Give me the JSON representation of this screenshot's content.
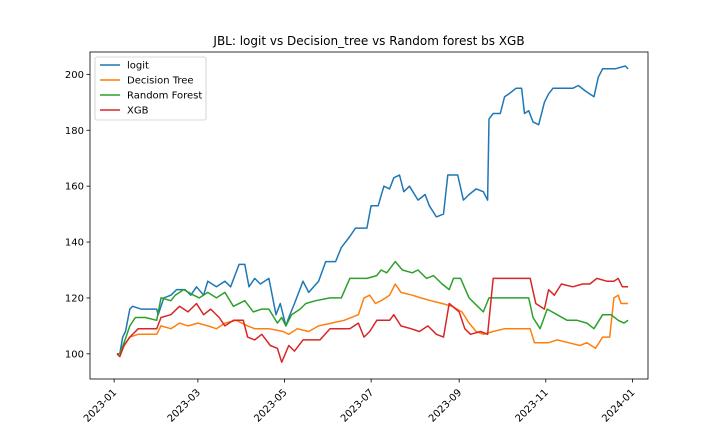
{
  "chart_data": {
    "type": "line",
    "title": "JBL: logit vs Decision_tree vs Random forest bs XGB",
    "xlabel": "",
    "ylabel": "",
    "xlim": [
      "2022-12-15",
      "2024-01-12"
    ],
    "ylim": [
      91,
      208
    ],
    "grid": false,
    "legend_position": "upper-left",
    "x_ticks": [
      "2023-01",
      "2023-03",
      "2023-05",
      "2023-07",
      "2023-09",
      "2023-11",
      "2024-01"
    ],
    "y_ticks": [
      100,
      120,
      140,
      160,
      180,
      200
    ],
    "series": [
      {
        "name": "logit",
        "color": "#1f77b4",
        "points": [
          [
            "2023-01-03",
            100
          ],
          [
            "2023-01-05",
            100
          ],
          [
            "2023-01-07",
            106
          ],
          [
            "2023-01-09",
            108
          ],
          [
            "2023-01-12",
            116
          ],
          [
            "2023-01-14",
            117
          ],
          [
            "2023-01-20",
            116
          ],
          [
            "2023-01-31",
            116
          ],
          [
            "2023-02-01",
            114
          ],
          [
            "2023-02-05",
            120
          ],
          [
            "2023-02-10",
            121
          ],
          [
            "2023-02-14",
            123
          ],
          [
            "2023-02-20",
            123
          ],
          [
            "2023-02-24",
            121
          ],
          [
            "2023-02-28",
            124
          ],
          [
            "2023-03-05",
            121
          ],
          [
            "2023-03-08",
            126
          ],
          [
            "2023-03-14",
            124
          ],
          [
            "2023-03-20",
            126
          ],
          [
            "2023-03-24",
            124
          ],
          [
            "2023-03-30",
            132
          ],
          [
            "2023-04-03",
            132
          ],
          [
            "2023-04-06",
            124
          ],
          [
            "2023-04-10",
            127
          ],
          [
            "2023-04-14",
            125
          ],
          [
            "2023-04-20",
            127
          ],
          [
            "2023-04-25",
            114
          ],
          [
            "2023-04-28",
            118
          ],
          [
            "2023-05-02",
            110
          ],
          [
            "2023-05-04",
            113
          ],
          [
            "2023-05-08",
            118
          ],
          [
            "2023-05-14",
            126
          ],
          [
            "2023-05-18",
            122
          ],
          [
            "2023-05-25",
            126
          ],
          [
            "2023-05-30",
            133
          ],
          [
            "2023-06-06",
            133
          ],
          [
            "2023-06-10",
            138
          ],
          [
            "2023-06-16",
            142
          ],
          [
            "2023-06-20",
            145
          ],
          [
            "2023-06-28",
            145
          ],
          [
            "2023-07-01",
            153
          ],
          [
            "2023-07-06",
            153
          ],
          [
            "2023-07-10",
            160
          ],
          [
            "2023-07-14",
            159
          ],
          [
            "2023-07-17",
            163
          ],
          [
            "2023-07-21",
            164
          ],
          [
            "2023-07-24",
            158
          ],
          [
            "2023-07-28",
            160
          ],
          [
            "2023-08-03",
            155
          ],
          [
            "2023-08-08",
            157
          ],
          [
            "2023-08-11",
            153
          ],
          [
            "2023-08-16",
            149
          ],
          [
            "2023-08-21",
            150
          ],
          [
            "2023-08-24",
            164
          ],
          [
            "2023-08-31",
            164
          ],
          [
            "2023-09-04",
            155
          ],
          [
            "2023-09-08",
            157
          ],
          [
            "2023-09-13",
            159
          ],
          [
            "2023-09-18",
            158
          ],
          [
            "2023-09-21",
            155
          ],
          [
            "2023-09-22",
            184
          ],
          [
            "2023-09-25",
            186
          ],
          [
            "2023-09-30",
            186
          ],
          [
            "2023-10-03",
            192
          ],
          [
            "2023-10-06",
            193
          ],
          [
            "2023-10-11",
            195
          ],
          [
            "2023-10-15",
            195
          ],
          [
            "2023-10-17",
            186
          ],
          [
            "2023-10-20",
            187
          ],
          [
            "2023-10-23",
            183
          ],
          [
            "2023-10-27",
            182
          ],
          [
            "2023-10-31",
            190
          ],
          [
            "2023-11-03",
            193
          ],
          [
            "2023-11-06",
            195
          ],
          [
            "2023-11-13",
            195
          ],
          [
            "2023-11-20",
            195
          ],
          [
            "2023-11-24",
            196
          ],
          [
            "2023-11-29",
            194
          ],
          [
            "2023-12-05",
            192
          ],
          [
            "2023-12-08",
            199
          ],
          [
            "2023-12-11",
            202
          ],
          [
            "2023-12-20",
            202
          ],
          [
            "2023-12-27",
            203
          ],
          [
            "2023-12-29",
            202
          ]
        ]
      },
      {
        "name": "Decision Tree",
        "color": "#ff7f0e",
        "points": [
          [
            "2023-01-03",
            100
          ],
          [
            "2023-01-05",
            100
          ],
          [
            "2023-01-08",
            103
          ],
          [
            "2023-01-12",
            106
          ],
          [
            "2023-01-18",
            107
          ],
          [
            "2023-01-31",
            107
          ],
          [
            "2023-02-03",
            110
          ],
          [
            "2023-02-10",
            109
          ],
          [
            "2023-02-16",
            111
          ],
          [
            "2023-02-22",
            110
          ],
          [
            "2023-03-01",
            111
          ],
          [
            "2023-03-08",
            110
          ],
          [
            "2023-03-14",
            109
          ],
          [
            "2023-03-20",
            111
          ],
          [
            "2023-03-28",
            112
          ],
          [
            "2023-04-05",
            110
          ],
          [
            "2023-04-10",
            109
          ],
          [
            "2023-04-20",
            109
          ],
          [
            "2023-04-30",
            108
          ],
          [
            "2023-05-04",
            107
          ],
          [
            "2023-05-10",
            109
          ],
          [
            "2023-05-18",
            108
          ],
          [
            "2023-05-25",
            110
          ],
          [
            "2023-06-03",
            111
          ],
          [
            "2023-06-12",
            112
          ],
          [
            "2023-06-22",
            114
          ],
          [
            "2023-06-26",
            120
          ],
          [
            "2023-06-30",
            121
          ],
          [
            "2023-07-04",
            118
          ],
          [
            "2023-07-08",
            119
          ],
          [
            "2023-07-14",
            121
          ],
          [
            "2023-07-18",
            125
          ],
          [
            "2023-07-22",
            122
          ],
          [
            "2023-07-30",
            121
          ],
          [
            "2023-08-05",
            120
          ],
          [
            "2023-08-12",
            119
          ],
          [
            "2023-08-20",
            118
          ],
          [
            "2023-08-27",
            117
          ],
          [
            "2023-09-03",
            115
          ],
          [
            "2023-09-08",
            111
          ],
          [
            "2023-09-13",
            108
          ],
          [
            "2023-09-18",
            107
          ],
          [
            "2023-09-25",
            108
          ],
          [
            "2023-10-03",
            109
          ],
          [
            "2023-10-12",
            109
          ],
          [
            "2023-10-21",
            109
          ],
          [
            "2023-10-24",
            104
          ],
          [
            "2023-11-03",
            104
          ],
          [
            "2023-11-09",
            105
          ],
          [
            "2023-11-17",
            104
          ],
          [
            "2023-11-25",
            103
          ],
          [
            "2023-11-30",
            104
          ],
          [
            "2023-12-06",
            102
          ],
          [
            "2023-12-11",
            106
          ],
          [
            "2023-12-16",
            106
          ],
          [
            "2023-12-19",
            120
          ],
          [
            "2023-12-22",
            121
          ],
          [
            "2023-12-24",
            118
          ],
          [
            "2023-12-29",
            118
          ]
        ]
      },
      {
        "name": "Random Forest",
        "color": "#2ca02c",
        "points": [
          [
            "2023-01-03",
            100
          ],
          [
            "2023-01-05",
            100
          ],
          [
            "2023-01-08",
            104
          ],
          [
            "2023-01-12",
            110
          ],
          [
            "2023-01-16",
            113
          ],
          [
            "2023-01-23",
            113
          ],
          [
            "2023-01-31",
            112
          ],
          [
            "2023-02-03",
            120
          ],
          [
            "2023-02-10",
            119
          ],
          [
            "2023-02-13",
            121
          ],
          [
            "2023-02-19",
            123
          ],
          [
            "2023-02-26",
            121
          ],
          [
            "2023-03-02",
            120
          ],
          [
            "2023-03-08",
            122
          ],
          [
            "2023-03-14",
            120
          ],
          [
            "2023-03-20",
            122
          ],
          [
            "2023-03-26",
            117
          ],
          [
            "2023-04-03",
            119
          ],
          [
            "2023-04-09",
            115
          ],
          [
            "2023-04-15",
            116
          ],
          [
            "2023-04-20",
            116
          ],
          [
            "2023-04-26",
            111
          ],
          [
            "2023-04-29",
            113
          ],
          [
            "2023-05-02",
            110
          ],
          [
            "2023-05-06",
            114
          ],
          [
            "2023-05-12",
            116
          ],
          [
            "2023-05-16",
            118
          ],
          [
            "2023-05-23",
            119
          ],
          [
            "2023-06-02",
            120
          ],
          [
            "2023-06-10",
            120
          ],
          [
            "2023-06-16",
            127
          ],
          [
            "2023-06-28",
            127
          ],
          [
            "2023-07-05",
            128
          ],
          [
            "2023-07-08",
            130
          ],
          [
            "2023-07-12",
            129
          ],
          [
            "2023-07-18",
            133
          ],
          [
            "2023-07-23",
            130
          ],
          [
            "2023-07-30",
            129
          ],
          [
            "2023-08-03",
            130
          ],
          [
            "2023-08-09",
            127
          ],
          [
            "2023-08-14",
            128
          ],
          [
            "2023-08-20",
            125
          ],
          [
            "2023-08-25",
            123
          ],
          [
            "2023-08-28",
            127
          ],
          [
            "2023-09-02",
            127
          ],
          [
            "2023-09-08",
            120
          ],
          [
            "2023-09-14",
            117
          ],
          [
            "2023-09-18",
            115
          ],
          [
            "2023-09-22",
            120
          ],
          [
            "2023-10-03",
            120
          ],
          [
            "2023-10-14",
            120
          ],
          [
            "2023-10-20",
            120
          ],
          [
            "2023-10-23",
            113
          ],
          [
            "2023-10-28",
            109
          ],
          [
            "2023-11-02",
            116
          ],
          [
            "2023-11-09",
            114
          ],
          [
            "2023-11-16",
            112
          ],
          [
            "2023-11-23",
            112
          ],
          [
            "2023-11-30",
            111
          ],
          [
            "2023-12-05",
            109
          ],
          [
            "2023-12-11",
            114
          ],
          [
            "2023-12-17",
            114
          ],
          [
            "2023-12-22",
            112
          ],
          [
            "2023-12-26",
            111
          ],
          [
            "2023-12-29",
            112
          ]
        ]
      },
      {
        "name": "XGB",
        "color": "#d62728",
        "points": [
          [
            "2023-01-03",
            100
          ],
          [
            "2023-01-05",
            99
          ],
          [
            "2023-01-08",
            103
          ],
          [
            "2023-01-12",
            106
          ],
          [
            "2023-01-18",
            109
          ],
          [
            "2023-01-31",
            109
          ],
          [
            "2023-02-03",
            113
          ],
          [
            "2023-02-10",
            114
          ],
          [
            "2023-02-16",
            117
          ],
          [
            "2023-02-22",
            115
          ],
          [
            "2023-02-28",
            118
          ],
          [
            "2023-03-05",
            114
          ],
          [
            "2023-03-10",
            116
          ],
          [
            "2023-03-16",
            113
          ],
          [
            "2023-03-20",
            110
          ],
          [
            "2023-03-26",
            112
          ],
          [
            "2023-04-02",
            112
          ],
          [
            "2023-04-05",
            106
          ],
          [
            "2023-04-10",
            105
          ],
          [
            "2023-04-15",
            107
          ],
          [
            "2023-04-21",
            103
          ],
          [
            "2023-04-26",
            102
          ],
          [
            "2023-04-29",
            97
          ],
          [
            "2023-05-04",
            103
          ],
          [
            "2023-05-08",
            101
          ],
          [
            "2023-05-14",
            105
          ],
          [
            "2023-05-20",
            105
          ],
          [
            "2023-05-26",
            105
          ],
          [
            "2023-06-02",
            109
          ],
          [
            "2023-06-16",
            109
          ],
          [
            "2023-06-22",
            111
          ],
          [
            "2023-06-26",
            106
          ],
          [
            "2023-06-30",
            108
          ],
          [
            "2023-07-05",
            112
          ],
          [
            "2023-07-14",
            112
          ],
          [
            "2023-07-17",
            114
          ],
          [
            "2023-07-22",
            110
          ],
          [
            "2023-07-29",
            109
          ],
          [
            "2023-08-04",
            108
          ],
          [
            "2023-08-10",
            110
          ],
          [
            "2023-08-16",
            107
          ],
          [
            "2023-08-21",
            106
          ],
          [
            "2023-08-25",
            118
          ],
          [
            "2023-09-01",
            115
          ],
          [
            "2023-09-05",
            109
          ],
          [
            "2023-09-09",
            107
          ],
          [
            "2023-09-16",
            108
          ],
          [
            "2023-09-21",
            107
          ],
          [
            "2023-09-25",
            127
          ],
          [
            "2023-10-03",
            127
          ],
          [
            "2023-10-14",
            127
          ],
          [
            "2023-10-21",
            127
          ],
          [
            "2023-10-25",
            118
          ],
          [
            "2023-10-31",
            116
          ],
          [
            "2023-11-03",
            123
          ],
          [
            "2023-11-07",
            121
          ],
          [
            "2023-11-12",
            125
          ],
          [
            "2023-11-20",
            124
          ],
          [
            "2023-11-27",
            125
          ],
          [
            "2023-12-02",
            125
          ],
          [
            "2023-12-07",
            127
          ],
          [
            "2023-12-14",
            126
          ],
          [
            "2023-12-19",
            126
          ],
          [
            "2023-12-22",
            127
          ],
          [
            "2023-12-25",
            124
          ],
          [
            "2023-12-29",
            124
          ]
        ]
      }
    ]
  }
}
